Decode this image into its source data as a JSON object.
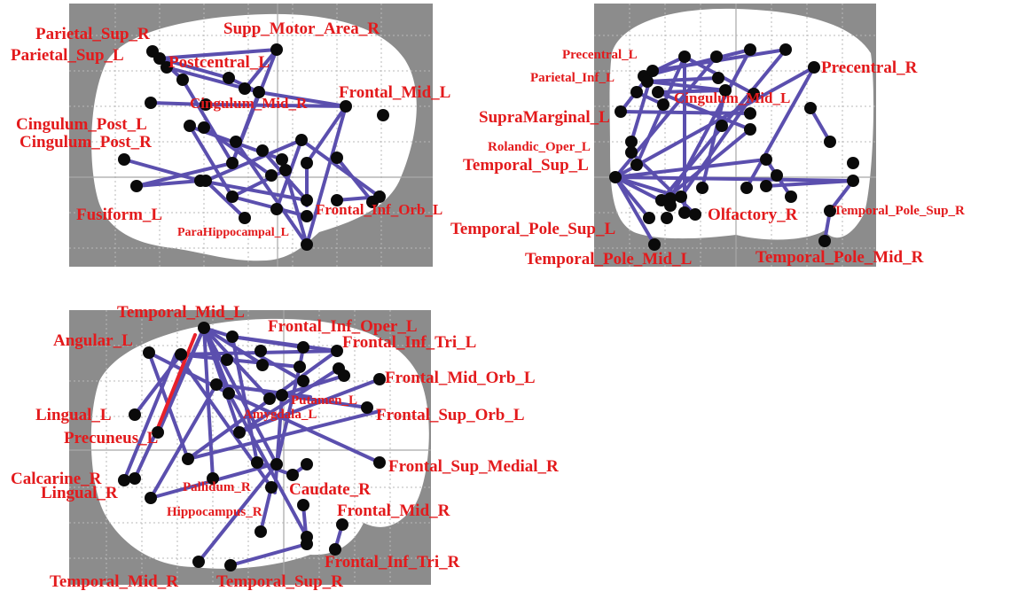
{
  "colors": {
    "edge": "#5b4fae",
    "edge_highlight": "#e8202a",
    "node": "#0a0a0a",
    "label": "#e31a1c",
    "background": "#8c8c8c"
  },
  "panels": [
    {
      "labels": [
        "Parietal_Sup_R",
        "Supp_Motor_Area_R",
        "Parietal_Sup_L",
        "Postcentral_L",
        "Cingulum_Mid_R",
        "Frontal_Mid_L",
        "Cingulum_Post_L",
        "Cingulum_Post_R",
        "Fusiform_L",
        "Frontal_Inf_Orb_L",
        "ParaHippocampal_L"
      ],
      "edge_count": 34
    },
    {
      "labels": [
        "Precentral_L",
        "Parietal_Inf_L",
        "Precentral_R",
        "Cingulum_Mid_L",
        "SupraMarginal_L",
        "Rolandic_Oper_L",
        "Temporal_Sup_L",
        "Olfactory_R",
        "Temporal_Pole_Sup_R",
        "Temporal_Pole_Sup_L",
        "Temporal_Pole_Mid_L",
        "Temporal_Pole_Mid_R"
      ],
      "edge_count": 34
    },
    {
      "labels": [
        "Temporal_Mid_L",
        "Frontal_Inf_Oper_L",
        "Angular_L",
        "Frontal_Inf_Tri_L",
        "Frontal_Mid_Orb_L",
        "Putamen_L",
        "Lingual_L",
        "Amygdala_L",
        "Frontal_Sup_Orb_L",
        "Precuneus_L",
        "Calcarine_R",
        "Frontal_Sup_Medial_R",
        "Lingual_R",
        "Pallidum_R",
        "Caudate_R",
        "Hippocampus_R",
        "Frontal_Mid_R",
        "Frontal_Inf_Tri_R",
        "Temporal_Mid_R",
        "Temporal_Sup_R"
      ],
      "edge_count": 41
    }
  ]
}
